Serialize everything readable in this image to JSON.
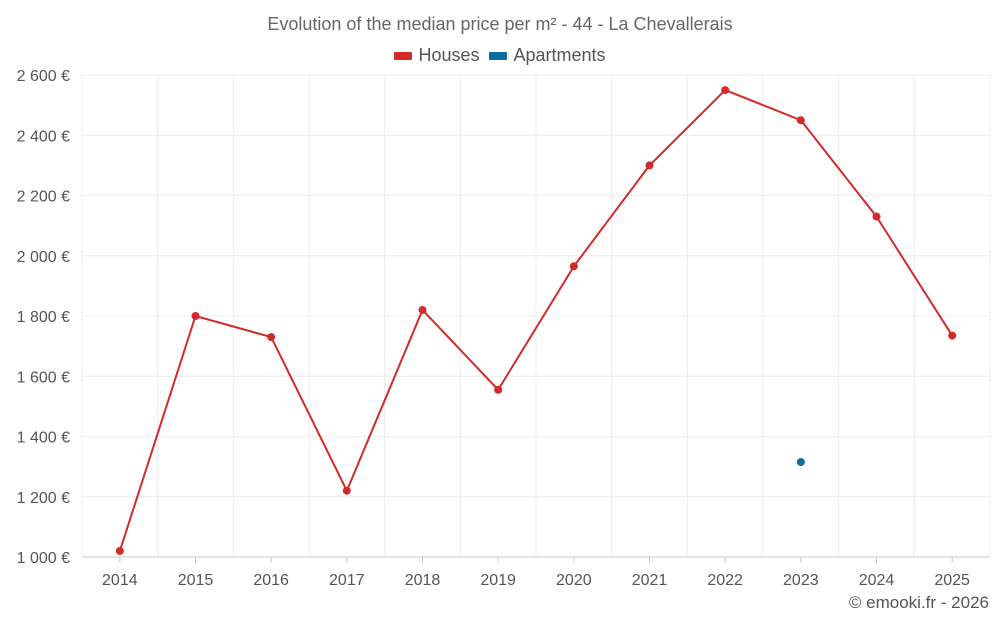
{
  "chart_data": {
    "type": "line",
    "title": "Evolution of the median price per m² - 44 - La Chevallerais",
    "categories": [
      "2014",
      "2015",
      "2016",
      "2017",
      "2018",
      "2019",
      "2020",
      "2021",
      "2022",
      "2023",
      "2024",
      "2025"
    ],
    "yticks": [
      "1 000 €",
      "1 200 €",
      "1 400 €",
      "1 600 €",
      "1 800 €",
      "2 000 €",
      "2 200 €",
      "2 400 €",
      "2 600 €"
    ],
    "ylim": [
      1000,
      2600
    ],
    "grid": true,
    "legend_position": "top-center",
    "series": [
      {
        "name": "Houses",
        "color": "#d32a2a",
        "values": [
          1020,
          1800,
          1730,
          1220,
          1820,
          1555,
          1965,
          2300,
          2550,
          2450,
          2130,
          1735
        ]
      },
      {
        "name": "Apartments",
        "color": "#0b6ea1",
        "values": [
          null,
          null,
          null,
          null,
          null,
          null,
          null,
          null,
          null,
          1315,
          null,
          null
        ]
      }
    ]
  },
  "credit": "© emooki.fr - 2026"
}
